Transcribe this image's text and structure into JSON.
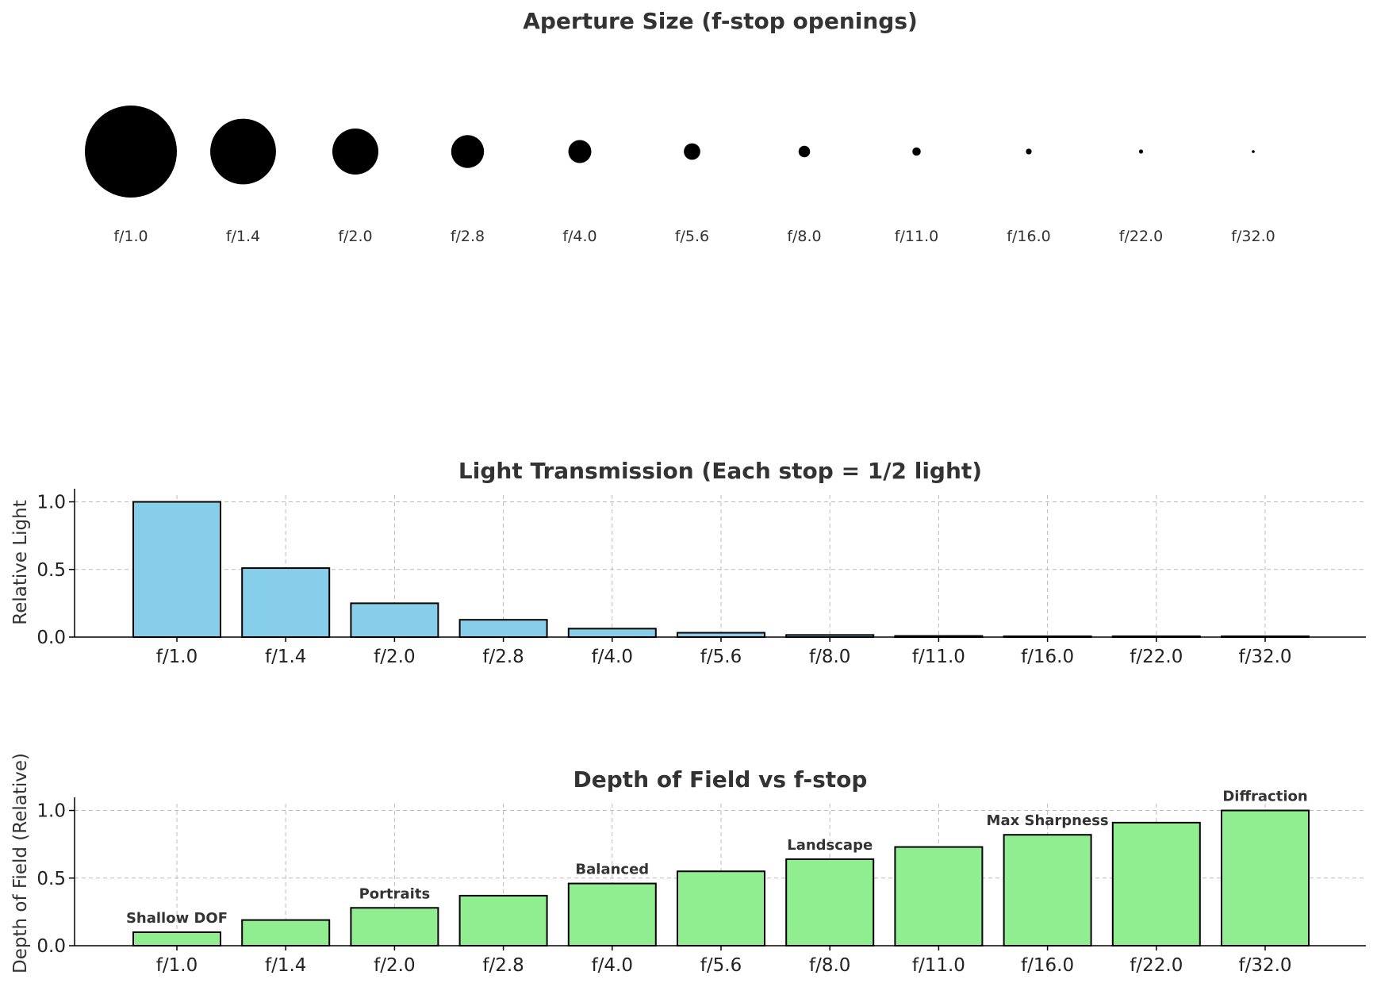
{
  "chart_data": [
    {
      "type": "scatter",
      "title": "Aperture Size (f-stop openings)",
      "categories": [
        "f/1.0",
        "f/1.4",
        "f/2.0",
        "f/2.8",
        "f/4.0",
        "f/5.6",
        "f/8.0",
        "f/11.0",
        "f/16.0",
        "f/22.0",
        "f/32.0"
      ],
      "f_numbers": [
        1.0,
        1.4,
        2.0,
        2.8,
        4.0,
        5.6,
        8.0,
        11.0,
        16.0,
        22.0,
        32.0
      ],
      "marker_color": "#000000"
    },
    {
      "type": "bar",
      "title": "Light Transmission (Each stop = 1/2 light)",
      "ylabel": "Relative Light",
      "xlabel": "",
      "categories": [
        "f/1.0",
        "f/1.4",
        "f/2.0",
        "f/2.8",
        "f/4.0",
        "f/5.6",
        "f/8.0",
        "f/11.0",
        "f/16.0",
        "f/22.0",
        "f/32.0"
      ],
      "values": [
        1.0,
        0.51,
        0.25,
        0.128,
        0.0625,
        0.032,
        0.0156,
        0.0083,
        0.0039,
        0.0021,
        0.001
      ],
      "ylim": [
        0,
        1.05
      ],
      "yticks": [
        "0.0",
        "0.5",
        "1.0"
      ],
      "grid": true,
      "bar_color": "#87ceeb"
    },
    {
      "type": "bar",
      "title": "Depth of Field vs f-stop",
      "ylabel": "Depth of Field (Relative)",
      "xlabel": "",
      "categories": [
        "f/1.0",
        "f/1.4",
        "f/2.0",
        "f/2.8",
        "f/4.0",
        "f/5.6",
        "f/8.0",
        "f/11.0",
        "f/16.0",
        "f/22.0",
        "f/32.0"
      ],
      "values": [
        0.1,
        0.19,
        0.28,
        0.37,
        0.46,
        0.55,
        0.64,
        0.73,
        0.82,
        0.91,
        1.0
      ],
      "ylim": [
        0,
        1.05
      ],
      "yticks": [
        "0.0",
        "0.5",
        "1.0"
      ],
      "grid": true,
      "bar_color": "#90ee90",
      "annotations": [
        {
          "index": 0,
          "text": "Shallow DOF"
        },
        {
          "index": 2,
          "text": "Portraits"
        },
        {
          "index": 4,
          "text": "Balanced"
        },
        {
          "index": 6,
          "text": "Landscape"
        },
        {
          "index": 8,
          "text": "Max Sharpness"
        },
        {
          "index": 10,
          "text": "Diffraction"
        }
      ]
    }
  ]
}
